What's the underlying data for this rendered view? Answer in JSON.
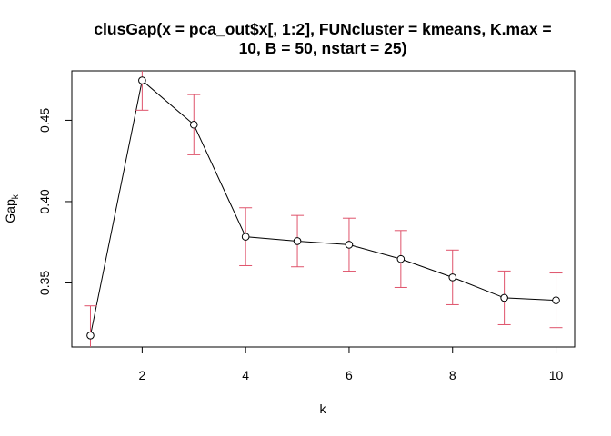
{
  "chart_data": {
    "type": "line",
    "title_line1": "clusGap(x = pca_out$x[, 1:2], FUNcluster = kmeans, K.max =",
    "title_line2": "10, B = 50, nstart = 25)",
    "xlabel": "k",
    "ylabel_main": "Gap",
    "ylabel_sub": "k",
    "xlim": [
      0.64,
      10.36
    ],
    "ylim": [
      0.3106,
      0.4804
    ],
    "x_ticks": [
      2,
      4,
      6,
      8,
      10
    ],
    "x_tick_labels": [
      "2",
      "4",
      "6",
      "8",
      "10"
    ],
    "y_ticks": [
      0.35,
      0.4,
      0.45
    ],
    "y_tick_labels": [
      "0.35",
      "0.40",
      "0.45"
    ],
    "x": [
      1,
      2,
      3,
      4,
      5,
      6,
      7,
      8,
      9,
      10
    ],
    "values": [
      0.3177,
      0.4745,
      0.4473,
      0.3784,
      0.3757,
      0.3735,
      0.3647,
      0.3534,
      0.3408,
      0.3393
    ],
    "se": [
      0.0182,
      0.0183,
      0.0185,
      0.0178,
      0.0158,
      0.0163,
      0.0175,
      0.0168,
      0.0165,
      0.0168
    ],
    "colors": {
      "line": "#000000",
      "points": "#000000",
      "error_bars": "#DF536B",
      "frame": "#000000"
    }
  }
}
